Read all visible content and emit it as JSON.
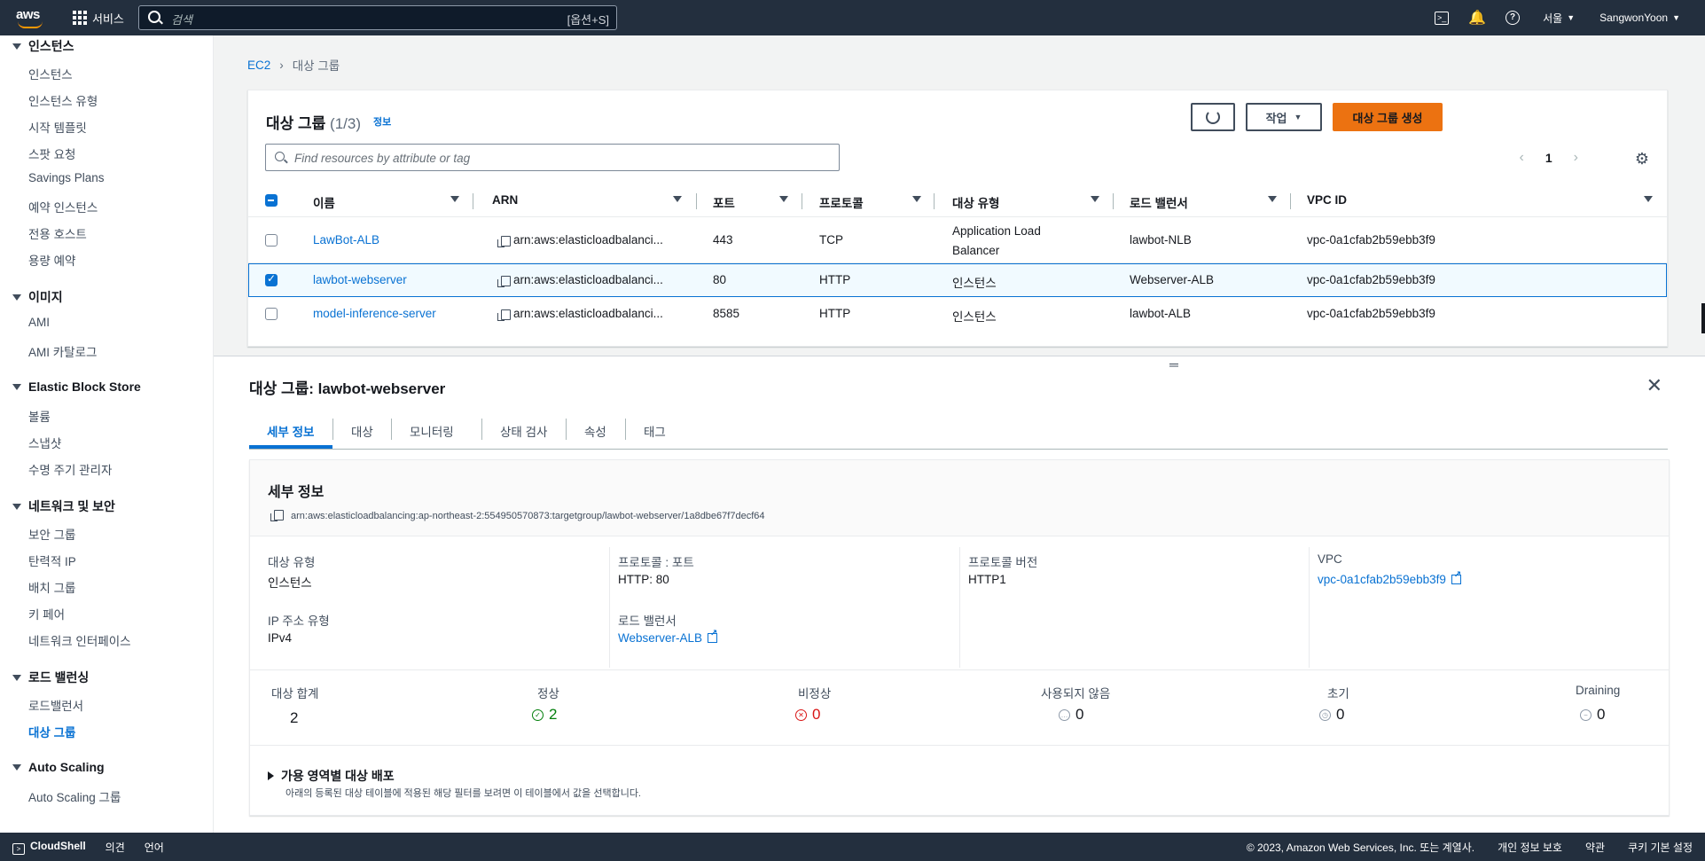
{
  "topnav": {
    "logo": "aws",
    "services_label": "서비스",
    "search_placeholder": "검색",
    "search_shortcut": "[옵션+S]",
    "region": "서울",
    "user": "SangwonYoon"
  },
  "sidebar": {
    "sections": [
      {
        "title": "인스턴스",
        "items": [
          "인스턴스",
          "인스턴스 유형",
          "시작 템플릿",
          "스팟 요청",
          "Savings Plans",
          "예약 인스턴스",
          "전용 호스트",
          "용량 예약"
        ]
      },
      {
        "title": "이미지",
        "items": [
          "AMI",
          "AMI 카탈로그"
        ]
      },
      {
        "title": "Elastic Block Store",
        "items": [
          "볼륨",
          "스냅샷",
          "수명 주기 관리자"
        ]
      },
      {
        "title": "네트워크 및 보안",
        "items": [
          "보안 그룹",
          "탄력적 IP",
          "배치 그룹",
          "키 페어",
          "네트워크 인터페이스"
        ]
      },
      {
        "title": "로드 밸런싱",
        "items": [
          "로드밸런서",
          "대상 그룹"
        ]
      },
      {
        "title": "Auto Scaling",
        "items": [
          "Auto Scaling 그룹"
        ]
      }
    ],
    "active_item": "대상 그룹"
  },
  "breadcrumb": {
    "root": "EC2",
    "current": "대상 그룹"
  },
  "table": {
    "title": "대상 그룹",
    "count": "(1/3)",
    "info": "정보",
    "refresh_icon": "refresh-icon",
    "actions_label": "작업",
    "create_label": "대상 그룹 생성",
    "filter_placeholder": "Find resources by attribute or tag",
    "page": "1",
    "columns": [
      "이름",
      "ARN",
      "포트",
      "프로토콜",
      "대상 유형",
      "로드 밸런서",
      "VPC ID"
    ],
    "rows": [
      {
        "name": "LawBot-ALB",
        "arn": "arn:aws:elasticloadbalanci...",
        "port": "443",
        "protocol": "TCP",
        "target_type_1": "Application Load",
        "target_type_2": "Balancer",
        "lb": "lawbot-NLB",
        "vpc": "vpc-0a1cfab2b59ebb3f9",
        "selected": false
      },
      {
        "name": "lawbot-webserver",
        "arn": "arn:aws:elasticloadbalanci...",
        "port": "80",
        "protocol": "HTTP",
        "target_type_1": "인스턴스",
        "target_type_2": "",
        "lb": "Webserver-ALB",
        "vpc": "vpc-0a1cfab2b59ebb3f9",
        "selected": true
      },
      {
        "name": "model-inference-server",
        "arn": "arn:aws:elasticloadbalanci...",
        "port": "8585",
        "protocol": "HTTP",
        "target_type_1": "인스턴스",
        "target_type_2": "",
        "lb": "lawbot-ALB",
        "vpc": "vpc-0a1cfab2b59ebb3f9",
        "selected": false
      }
    ]
  },
  "split": {
    "title": "대상 그룹: lawbot-webserver",
    "tabs": [
      "세부 정보",
      "대상",
      "모니터링",
      "상태 검사",
      "속성",
      "태그"
    ],
    "active_tab": "세부 정보",
    "details": {
      "heading": "세부 정보",
      "arn": "arn:aws:elasticloadbalancing:ap-northeast-2:554950570873:targetgroup/lawbot-webserver/1a8dbe67f7decf64",
      "target_type_label": "대상 유형",
      "target_type": "인스턴스",
      "protocol_port_label": "프로토콜 : 포트",
      "protocol_port": "HTTP: 80",
      "protocol_version_label": "프로토콜 버전",
      "protocol_version": "HTTP1",
      "vpc_label": "VPC",
      "vpc": "vpc-0a1cfab2b59ebb3f9",
      "ip_type_label": "IP 주소 유형",
      "ip_type": "IPv4",
      "lb_label": "로드 밸런서",
      "lb": "Webserver-ALB"
    },
    "stats": {
      "total_label": "대상 합계",
      "total": "2",
      "healthy_label": "정상",
      "healthy": "2",
      "unhealthy_label": "비정상",
      "unhealthy": "0",
      "unused_label": "사용되지 않음",
      "unused": "0",
      "initial_label": "초기",
      "initial": "0",
      "draining_label": "Draining",
      "draining": "0"
    },
    "az_title": "가용 영역별 대상 배포",
    "az_desc": "아래의 등록된 대상 테이블에 적용된 해당 필터를 보려면 이 테이블에서 값을 선택합니다."
  },
  "footer": {
    "cloudshell": "CloudShell",
    "feedback": "의견",
    "language": "언어",
    "copyright": "© 2023, Amazon Web Services, Inc. 또는 계열사.",
    "privacy": "개인 정보 보호",
    "terms": "약관",
    "cookies": "쿠키 기본 설정"
  }
}
